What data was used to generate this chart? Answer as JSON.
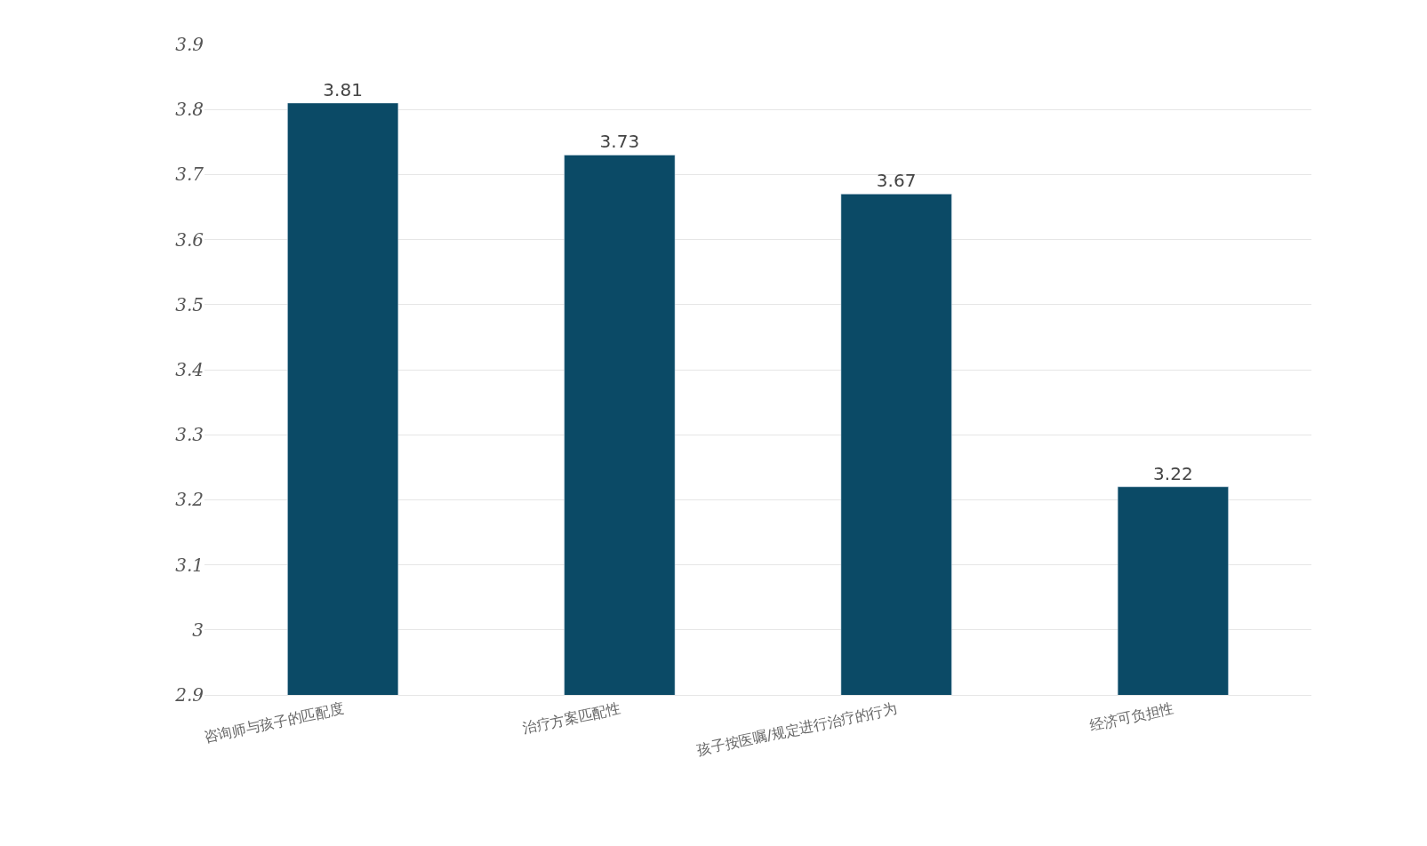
{
  "chart_data": {
    "type": "bar",
    "categories": [
      "咨询师与孩子的匹配度",
      "治疗方案匹配性",
      "孩子按医嘱/规定进行治疗的行为",
      "经济可负担性"
    ],
    "values": [
      3.81,
      3.73,
      3.67,
      3.22
    ],
    "color": "#0b4a66",
    "ylim": [
      2.9,
      3.9
    ],
    "yticks": [
      2.9,
      3,
      3.1,
      3.2,
      3.3,
      3.4,
      3.5,
      3.6,
      3.7,
      3.8,
      3.9
    ],
    "grid": "y",
    "data_labels": true
  }
}
